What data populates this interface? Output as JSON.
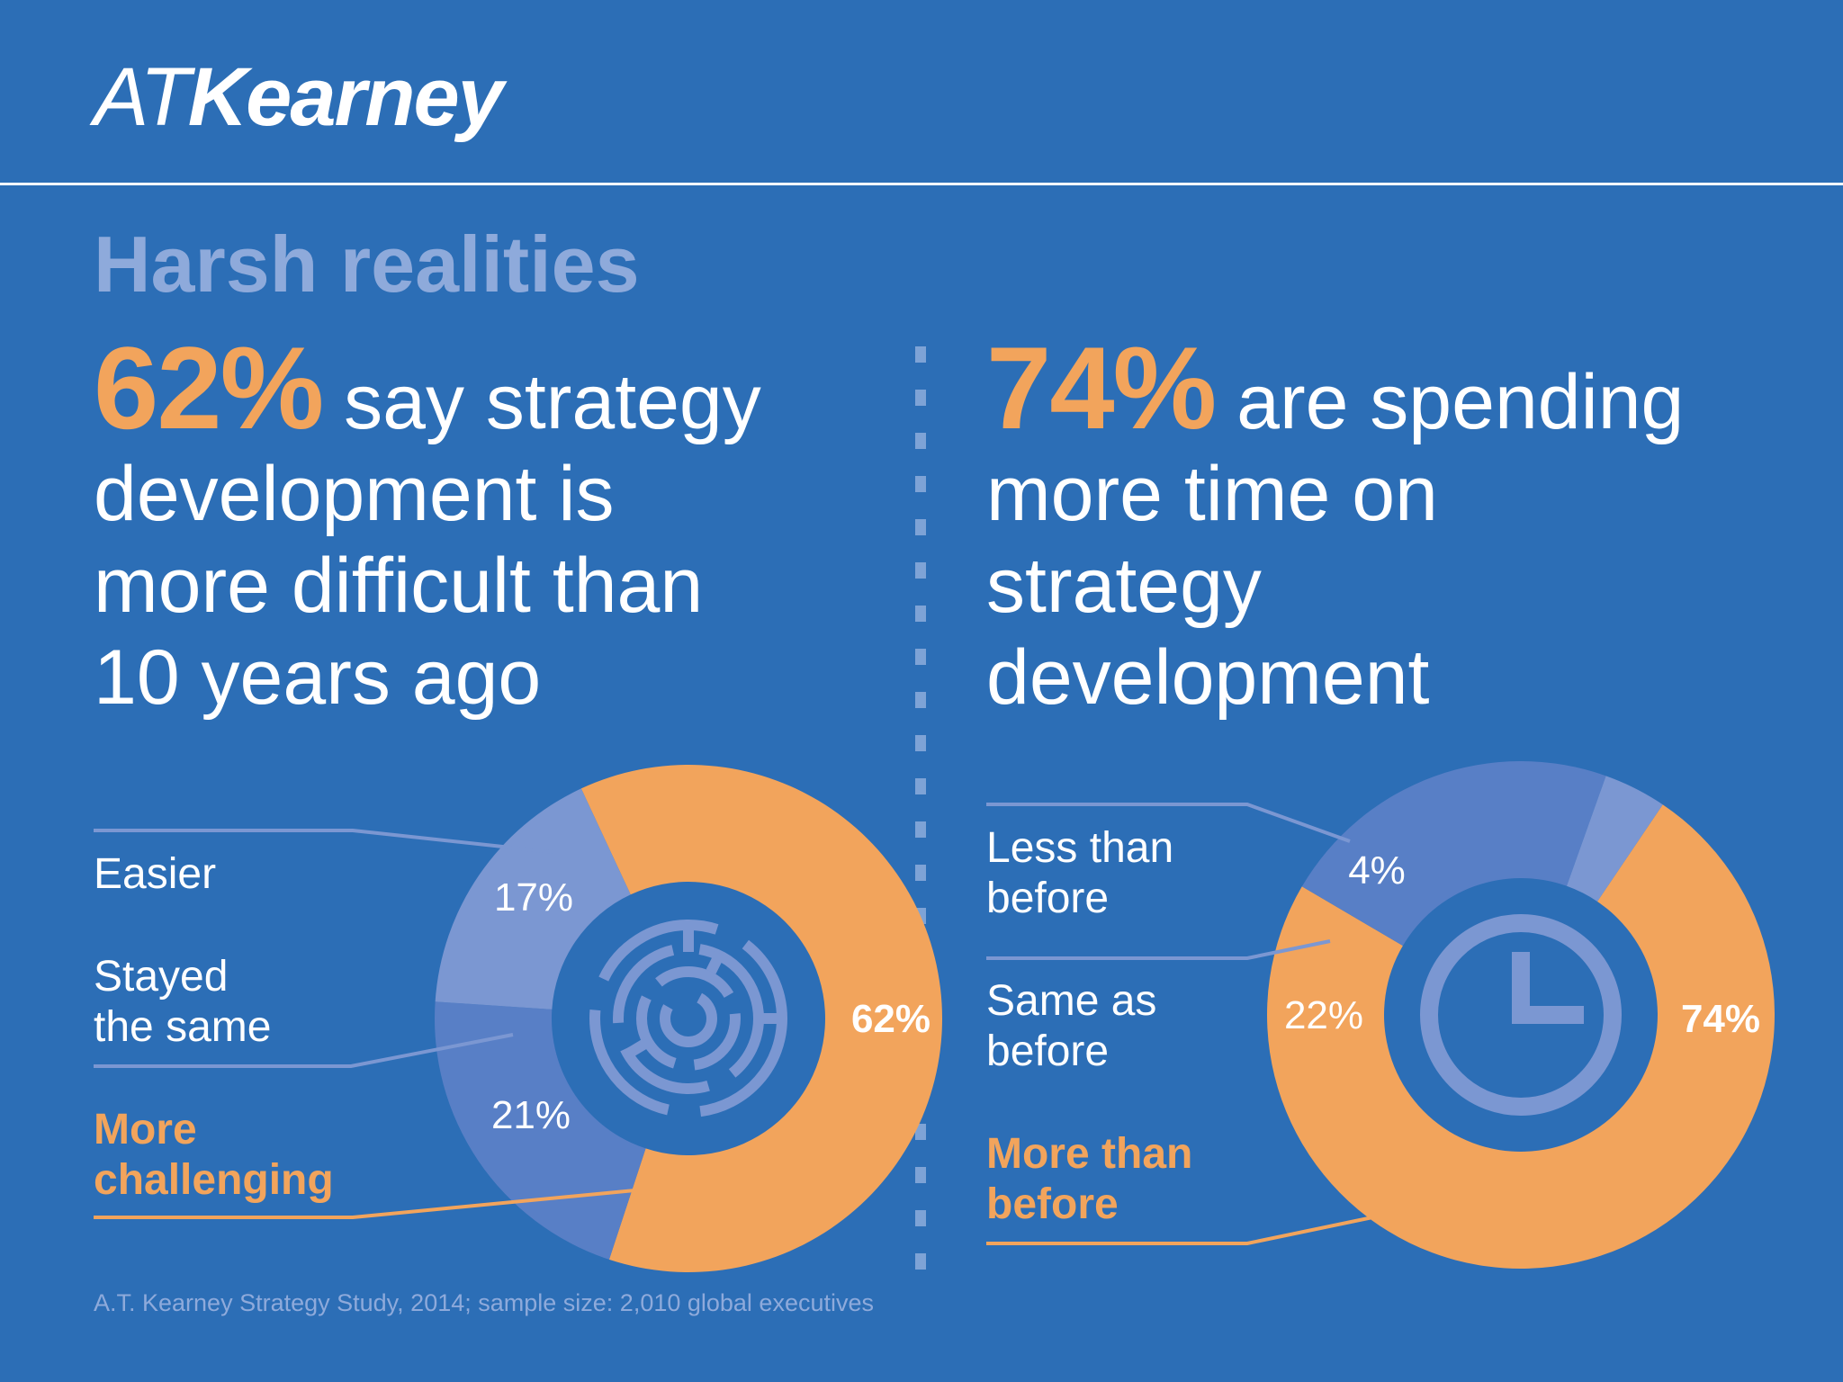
{
  "logo": {
    "prefix": "AT",
    "name": "Kearney"
  },
  "headline": "Harsh realities",
  "colors": {
    "background": "#2c6eb6",
    "accent": "#f2a45c",
    "muted": "#8eaadb",
    "slice_light": "#7b97d2",
    "slice_mid": "#587fc6"
  },
  "left": {
    "stat_value": "62%",
    "stat_lines": [
      "say strategy",
      "development is",
      "more difficult than",
      "10 years ago"
    ],
    "labels": {
      "easier": "Easier",
      "same_line1": "Stayed",
      "same_line2": "the same",
      "more_line1": "More",
      "more_line2": "challenging"
    },
    "center_icon": "maze-icon"
  },
  "right": {
    "stat_value": "74%",
    "stat_lines": [
      "are spending",
      "more time on",
      "strategy",
      "development"
    ],
    "labels": {
      "less_line1": "Less than",
      "less_line2": "before",
      "same_line1": "Same as",
      "same_line2": "before",
      "more_line1": "More than",
      "more_line2": "before"
    },
    "center_icon": "clock-icon"
  },
  "source": "A.T. Kearney Strategy Study, 2014; sample size: 2,010 global executives",
  "chart_data": [
    {
      "type": "pie",
      "categories": [
        "More challenging",
        "Stayed the same",
        "Easier"
      ],
      "values": [
        62,
        21,
        17
      ],
      "data_labels": [
        "62%",
        "21%",
        "17%"
      ]
    },
    {
      "type": "pie",
      "categories": [
        "More than before",
        "Same as before",
        "Less than before"
      ],
      "values": [
        74,
        22,
        4
      ],
      "data_labels": [
        "74%",
        "22%",
        "4%"
      ]
    }
  ]
}
